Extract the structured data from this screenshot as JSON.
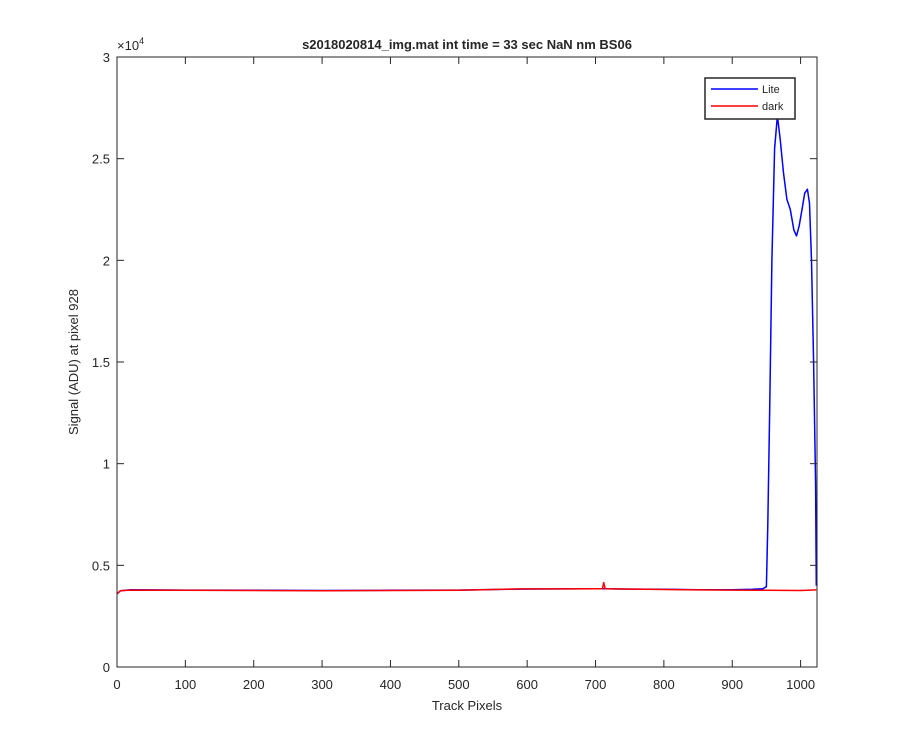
{
  "chart_data": {
    "type": "line",
    "title": "s2018020814_img.mat int time = 33 sec  NaN nm BS06",
    "xlabel": "Track Pixels",
    "ylabel": "Signal (ADU) at pixel 928",
    "y_exponent_label": "×10",
    "y_exponent_power": "4",
    "xlim": [
      0,
      1024
    ],
    "ylim": [
      0,
      30000
    ],
    "x_ticks": [
      0,
      100,
      200,
      300,
      400,
      500,
      600,
      700,
      800,
      900,
      1000
    ],
    "x_tick_labels": [
      "0",
      "100",
      "200",
      "300",
      "400",
      "500",
      "600",
      "700",
      "800",
      "900",
      "1000"
    ],
    "y_ticks": [
      0,
      5000,
      10000,
      15000,
      20000,
      25000,
      30000
    ],
    "y_tick_labels": [
      "0",
      "0.5",
      "1",
      "1.5",
      "2",
      "2.5",
      "3"
    ],
    "grid": false,
    "legend_position": "top-right",
    "series": [
      {
        "name": "Lite",
        "color": "#0000ff",
        "x": [
          0,
          5,
          20,
          100,
          200,
          300,
          400,
          500,
          590,
          650,
          700,
          712,
          750,
          800,
          850,
          900,
          930,
          945,
          950,
          952,
          955,
          958,
          962,
          966,
          970,
          975,
          980,
          985,
          990,
          994,
          998,
          1002,
          1006,
          1010,
          1013,
          1016,
          1019,
          1022,
          1023
        ],
        "y": [
          3600,
          3750,
          3800,
          3780,
          3770,
          3760,
          3770,
          3780,
          3830,
          3840,
          3850,
          3850,
          3830,
          3820,
          3800,
          3800,
          3820,
          3850,
          3950,
          7000,
          13000,
          20000,
          25500,
          27100,
          26000,
          24300,
          23000,
          22500,
          21500,
          21200,
          21700,
          22500,
          23300,
          23500,
          22800,
          20000,
          15000,
          9000,
          4000
        ]
      },
      {
        "name": "dark",
        "color": "#ff0000",
        "x": [
          0,
          5,
          20,
          100,
          200,
          300,
          400,
          500,
          590,
          650,
          700,
          710,
          712,
          714,
          750,
          800,
          850,
          900,
          950,
          1000,
          1023
        ],
        "y": [
          3600,
          3750,
          3780,
          3770,
          3760,
          3750,
          3760,
          3770,
          3840,
          3840,
          3850,
          3850,
          4150,
          3850,
          3830,
          3810,
          3790,
          3780,
          3770,
          3760,
          3790
        ]
      }
    ]
  }
}
